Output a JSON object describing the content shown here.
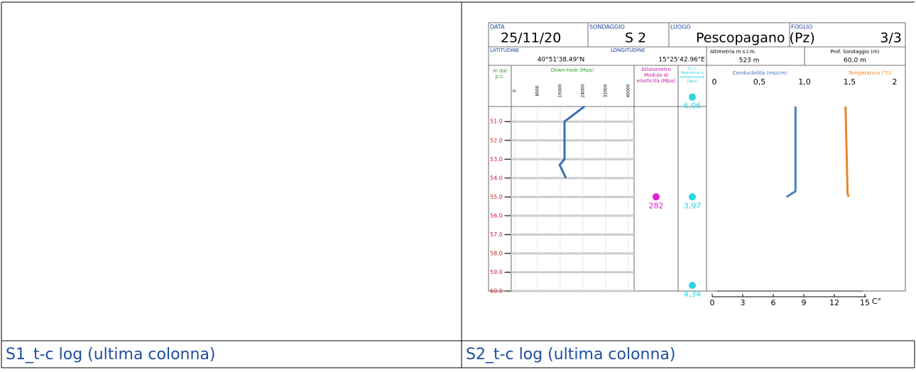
{
  "captions": [
    "S1_t-c log (ultima colonna)",
    "S2_t-c log (ultima colonna)"
  ],
  "log": {
    "header": {
      "data_label": "DATA",
      "data": "25/11/20",
      "sondaggio_label": "SONDAGGIO",
      "sondaggio": "S 2",
      "luogo_label": "LUOGO",
      "luogo": "Pescopagano (Pz)",
      "foglio_label": "FOGLIO",
      "foglio": "3/3",
      "latitudine_label": "LATITUDINE",
      "latitudine": "40°51'38.49\"N",
      "longitudine_label": "LONGITUDINE",
      "longitudine": "15°25'42.96\"E",
      "altimetria_label": "Altimetria m s.l.m.",
      "altimetria": "523 m",
      "prof_label": "Prof. Sondaggio (m)",
      "prof": "60,0 m"
    },
    "depth": {
      "title": "m dal p.c.",
      "ylim": [
        50.2,
        60
      ],
      "ticks": [
        {
          "value": 51,
          "label": "51.0"
        },
        {
          "value": 52,
          "label": "52.0"
        },
        {
          "value": 53,
          "label": "53.0"
        },
        {
          "value": 54,
          "label": "54.0"
        },
        {
          "value": 55,
          "label": "55.0"
        },
        {
          "value": 56,
          "label": "56.0"
        },
        {
          "value": 57,
          "label": "57.0"
        },
        {
          "value": 58,
          "label": "58.0"
        },
        {
          "value": 59,
          "label": "59.0"
        },
        {
          "value": 60,
          "label": "60.0"
        }
      ]
    },
    "downhole": {
      "title": "Down-Hole (Mpa)",
      "xlim": [
        0,
        40000
      ],
      "ticks": [
        0,
        8000,
        16000,
        24000,
        32000,
        40000
      ],
      "color": "#3a6fb5",
      "depths": [
        50.2,
        51.0,
        53.0,
        53.3,
        54.0
      ],
      "values": [
        24500,
        17500,
        17500,
        15800,
        18000
      ]
    },
    "dilatometro": {
      "title": "Dilatometro Modulo di elasticità (Mpa)",
      "color": "#e020c8",
      "depths": [
        55.3
      ],
      "values": [
        282
      ]
    },
    "sll": {
      "title": "S.L.L. Resistenza a compressione (Mpa)",
      "color": "#2ad4e0",
      "depths": [
        50.0,
        55.3,
        60.0
      ],
      "values": [
        6.06,
        3.97,
        4.34
      ],
      "value_labels": [
        "6,06",
        "3,97",
        "4,34"
      ]
    },
    "conducibilita": {
      "title": "Conducibilità (ms/cm)",
      "xlim": [
        0,
        2
      ],
      "color": "#4a7fc0",
      "ticks": [
        0,
        {
          "value": 0.5,
          "label": "0,5"
        },
        {
          "value": 1,
          "label": "1,0"
        },
        {
          "value": 1.5,
          "label": "1,5"
        },
        2
      ],
      "depths": [
        50.2,
        54.7,
        55.0
      ],
      "values": [
        0.9,
        0.9,
        0.8
      ]
    },
    "temperatura": {
      "title": "Temperatura (°C)",
      "xlim": [
        0,
        15
      ],
      "color": "#e8872a",
      "unit": "C°",
      "ticks": [
        0,
        3,
        6,
        9,
        12,
        15
      ],
      "depths": [
        50.2,
        54.8,
        55.0
      ],
      "values": [
        13.1,
        13.3,
        13.4
      ]
    }
  }
}
